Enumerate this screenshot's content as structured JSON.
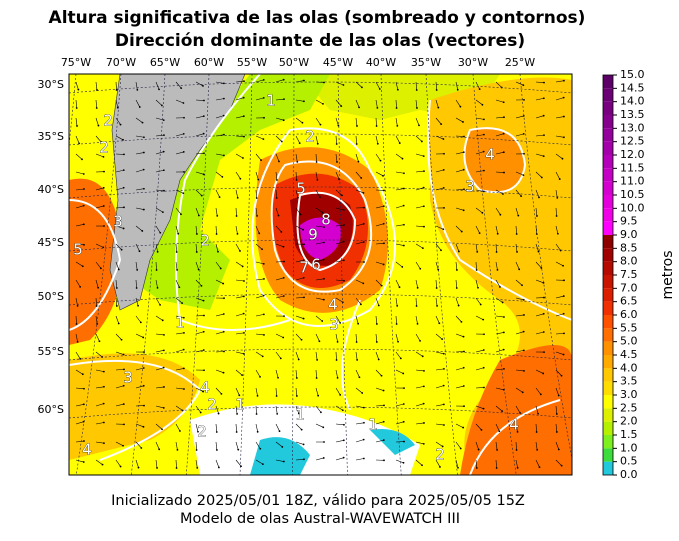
{
  "title": [
    "Altura significativa de las olas (sombreado y contornos)",
    "Dirección dominante de las olas (vectores)"
  ],
  "map": {
    "lon_labels": [
      "75°W",
      "70°W",
      "65°W",
      "60°W",
      "55°W",
      "50°W",
      "45°W",
      "40°W",
      "35°W",
      "30°W",
      "25°W"
    ],
    "lat_labels": [
      "30°S",
      "35°S",
      "40°S",
      "45°S",
      "50°S",
      "55°S",
      "60°S"
    ],
    "contour_labels": [
      "1",
      "2",
      "2",
      "2",
      "3",
      "5",
      "9",
      "8",
      "6",
      "7",
      "4",
      "3",
      "4",
      "3",
      "2",
      "1",
      "3",
      "4",
      "2",
      "1",
      "1",
      "4",
      "2",
      "5",
      "3",
      "4",
      "1",
      "2"
    ]
  },
  "colorbar": {
    "label": "metros",
    "ticks": [
      {
        "value": 0,
        "label": "0.0"
      },
      {
        "value": 0.5,
        "label": "0.5"
      },
      {
        "value": 1,
        "label": "1.0"
      },
      {
        "value": 1.5,
        "label": "1.5"
      },
      {
        "value": 2,
        "label": "2.0"
      },
      {
        "value": 2.5,
        "label": "2.5"
      },
      {
        "value": 3,
        "label": "3.0"
      },
      {
        "value": 3.5,
        "label": "3.5"
      },
      {
        "value": 4,
        "label": "4.0"
      },
      {
        "value": 4.5,
        "label": "4.5"
      },
      {
        "value": 5,
        "label": "5.0"
      },
      {
        "value": 5.5,
        "label": "5.5"
      },
      {
        "value": 6,
        "label": "6.0"
      },
      {
        "value": 6.5,
        "label": "6.5"
      },
      {
        "value": 7,
        "label": "7.0"
      },
      {
        "value": 7.5,
        "label": "7.5"
      },
      {
        "value": 8,
        "label": "8.0"
      },
      {
        "value": 8.5,
        "label": "8.5"
      },
      {
        "value": 9,
        "label": "9.0"
      },
      {
        "value": 9.5,
        "label": "9.5"
      },
      {
        "value": 10,
        "label": "10.0"
      },
      {
        "value": 10.5,
        "label": "10.5"
      },
      {
        "value": 11,
        "label": "11.0"
      },
      {
        "value": 11.5,
        "label": "11.5"
      },
      {
        "value": 12,
        "label": "12.0"
      },
      {
        "value": 12.5,
        "label": "12.5"
      },
      {
        "value": 13,
        "label": "13.0"
      },
      {
        "value": 13.5,
        "label": "13.5"
      },
      {
        "value": 14,
        "label": "14.0"
      },
      {
        "value": 14.5,
        "label": "14.5"
      },
      {
        "value": 15,
        "label": "15.0"
      }
    ],
    "colors": [
      "#22c8dc",
      "#3ddc3d",
      "#7ef020",
      "#b4f000",
      "#dcf000",
      "#ffff00",
      "#ffdc00",
      "#ffc800",
      "#ffaa00",
      "#ff9000",
      "#ff6e00",
      "#ff5000",
      "#f03000",
      "#dc1e00",
      "#c81400",
      "#b40a00",
      "#a00000",
      "#8c0000",
      "#ff00ff",
      "#f000e6",
      "#e400dc",
      "#d400d0",
      "#c400c4",
      "#b400b8",
      "#a400aa",
      "#94009c",
      "#86008e",
      "#780080",
      "#6a0074",
      "#5c0068"
    ]
  },
  "footer": [
    "Inicializado 2025/05/01 18Z, válido para 2025/05/05 15Z",
    "Modelo de olas Austral-WAVEWATCH III"
  ]
}
